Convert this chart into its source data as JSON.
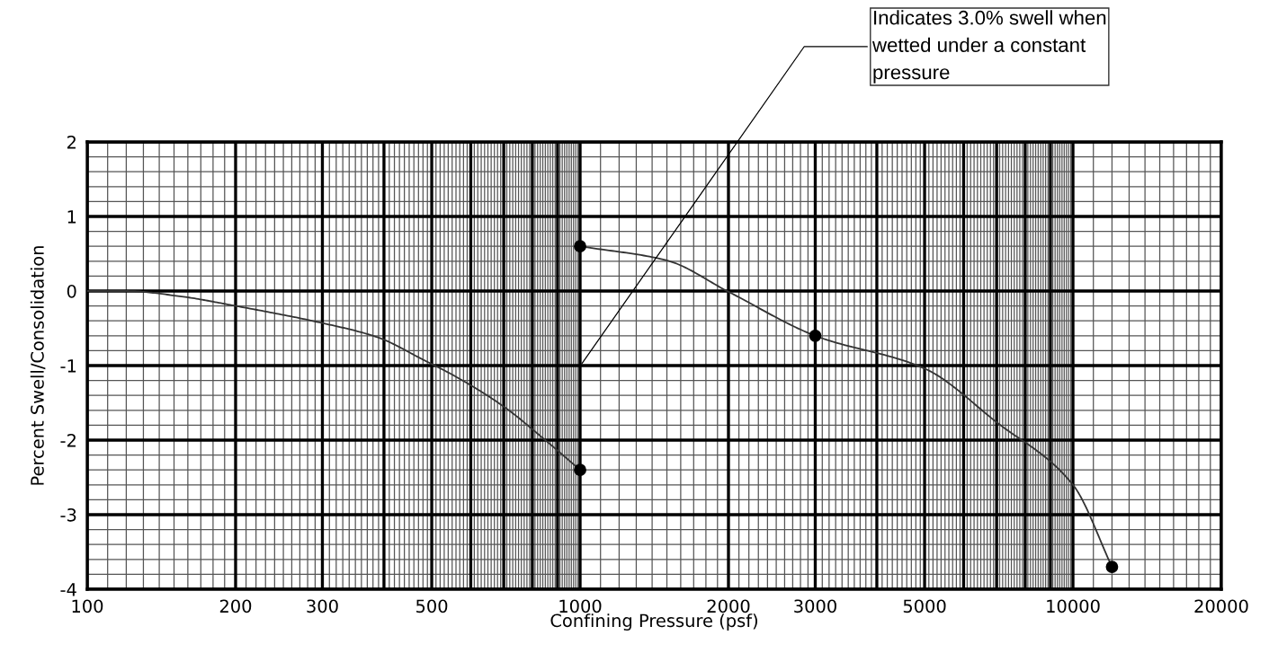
{
  "chart_data": {
    "type": "line",
    "xlabel": "Confining Pressure (psf)",
    "ylabel": "Percent Swell/Consolidation",
    "log": "x",
    "xlim": [
      100,
      20000
    ],
    "ylim": [
      -4,
      2
    ],
    "xticks": [
      100,
      200,
      300,
      {
        "value": 400,
        "label": null
      },
      500,
      {
        "value": 600,
        "label": null
      },
      {
        "value": 700,
        "label": null
      },
      {
        "value": 800,
        "label": null
      },
      {
        "value": 900,
        "label": null
      },
      1000,
      2000,
      3000,
      {
        "value": 4000,
        "label": null
      },
      5000,
      {
        "value": 6000,
        "label": null
      },
      {
        "value": 7000,
        "label": null
      },
      {
        "value": 8000,
        "label": null
      },
      {
        "value": 9000,
        "label": null
      },
      10000,
      20000
    ],
    "yticks": [
      -4,
      -3,
      -2,
      -1,
      0,
      1,
      2
    ],
    "grid": true,
    "series": [
      {
        "color": "#333333",
        "marker": "none",
        "x": [
          100,
          120,
          154,
          200,
          300,
          388,
          480,
          560,
          700,
          850,
          1000
        ],
        "values": [
          0,
          0,
          -0.07,
          -0.2,
          -0.43,
          -0.62,
          -0.92,
          -1.15,
          -1.55,
          -2.0,
          -2.4
        ]
      },
      {
        "color": "#333333",
        "marker": "none",
        "x": [
          1000,
          1500,
          2000,
          3000,
          5000,
          7000,
          10000,
          12000
        ],
        "values": [
          0.6,
          0.41,
          -0.01,
          -0.6,
          -1.04,
          -1.76,
          -2.6,
          -3.7
        ]
      },
      {
        "type": "scatter",
        "color": "#000000",
        "marker": "circle",
        "x": [
          1000,
          1000,
          3000,
          12000
        ],
        "values": [
          0.6,
          -2.4,
          -0.6,
          -3.7
        ]
      }
    ],
    "annotations": [
      "Indicates 3.0% swell when\nwetted under a constant\npressure"
    ]
  }
}
